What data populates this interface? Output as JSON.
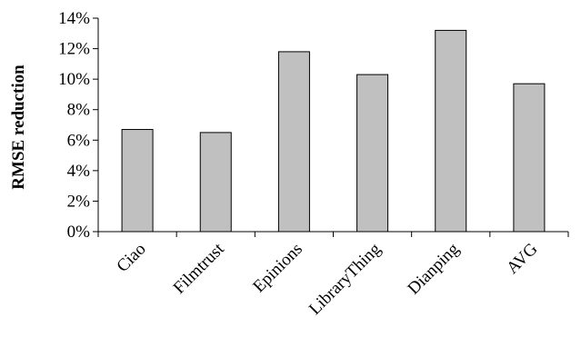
{
  "chart_data": {
    "type": "bar",
    "title": "",
    "xlabel": "",
    "ylabel": "RMSE  reduction",
    "categories": [
      "Ciao",
      "Filmtrust",
      "Epinions",
      "LibraryThing",
      "Dianping",
      "AVG"
    ],
    "values": [
      6.7,
      6.5,
      11.8,
      10.3,
      13.2,
      9.7
    ],
    "ylim": [
      0,
      14
    ],
    "yticks": [
      "0%",
      "2%",
      "4%",
      "6%",
      "8%",
      "10%",
      "12%",
      "14%"
    ],
    "grid": false,
    "legend": "none",
    "bar_color": "#c0c0c0",
    "bar_stroke": "#000000"
  }
}
